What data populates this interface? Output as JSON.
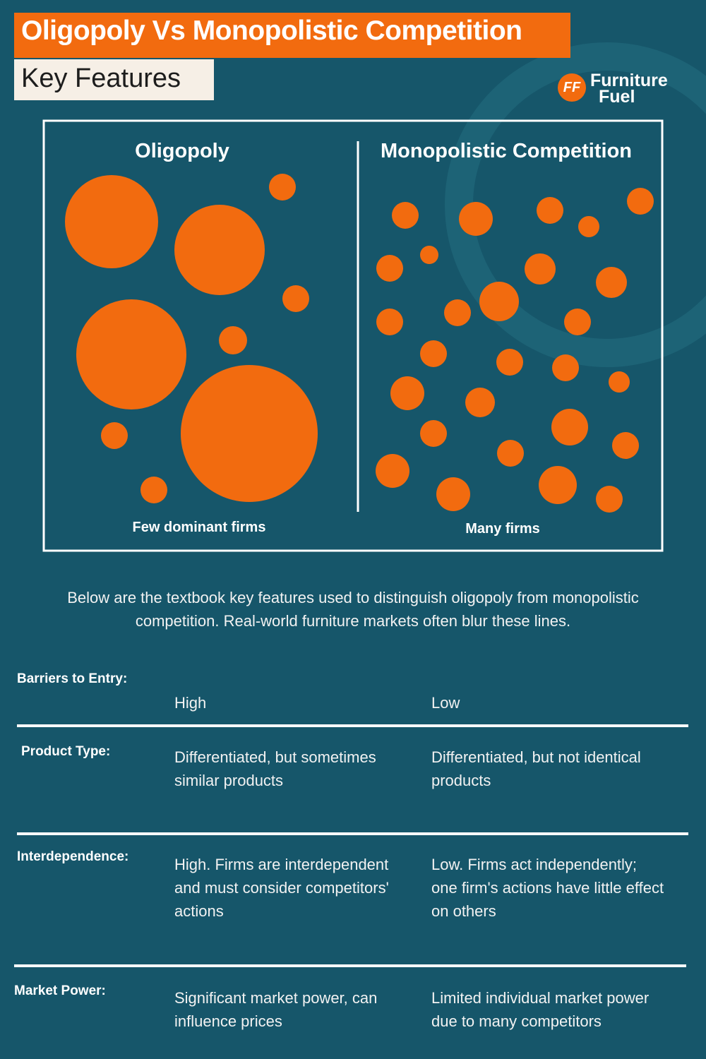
{
  "header": {
    "title": "Oligopoly Vs Monopolistic Competition",
    "subtitle": "Key Features"
  },
  "logo": {
    "mark": "FF",
    "line1": "Furniture",
    "line2": "Fuel"
  },
  "panels": [
    {
      "title": "Oligopoly",
      "caption": "Few dominant firms"
    },
    {
      "title": "Monopolistic Competition",
      "caption": "Many firms"
    }
  ],
  "intro": "Below are the textbook key features used to distinguish oligopoly from monopolistic competition. Real-world furniture markets often blur these lines.",
  "table": {
    "rows": [
      [
        "Barriers to Entry:",
        "High",
        "Low"
      ],
      [
        "Product Type:",
        "Differentiated, but sometimes similar products",
        "Differentiated, but not identical products"
      ],
      [
        "Interdependence:",
        "High. Firms are interdependent and must consider competitors' actions",
        "Low. Firms act independently; one firm's actions have little effect on others"
      ],
      [
        "Market Power:",
        "Significant market power, can influence prices",
        "Limited individual market power due to many competitors"
      ]
    ]
  }
}
